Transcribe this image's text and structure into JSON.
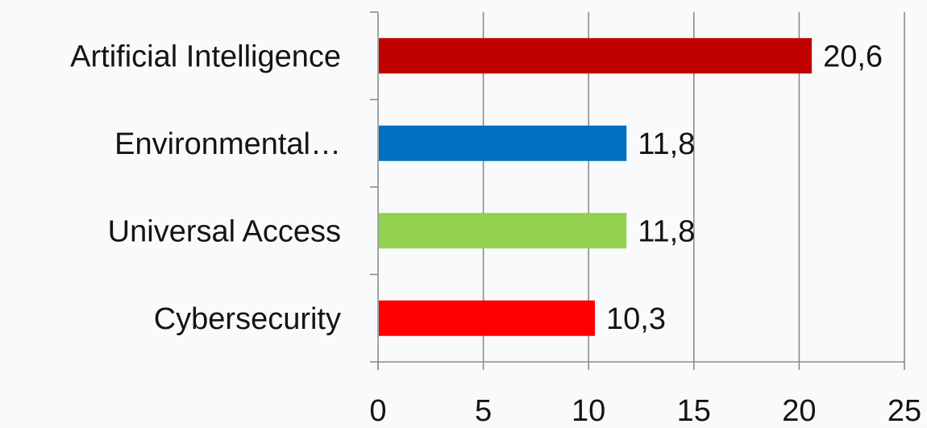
{
  "chart_data": {
    "type": "bar",
    "orientation": "horizontal",
    "categories": [
      "Artificial Intelligence",
      "Environmental…",
      "Universal Access",
      "Cybersecurity"
    ],
    "values": [
      20.6,
      11.8,
      11.8,
      10.3
    ],
    "value_labels": [
      "20,6",
      "11,8",
      "11,8",
      "10,3"
    ],
    "bar_colors": [
      "#c00000",
      "#0070c0",
      "#92d050",
      "#ff0000"
    ],
    "x_ticks": [
      0,
      5,
      10,
      15,
      20,
      25
    ],
    "x_tick_labels": [
      "0",
      "5",
      "10",
      "15",
      "20",
      "25"
    ],
    "xlim": [
      0,
      25
    ],
    "grid": "vertical",
    "legend": "none",
    "title": "",
    "xlabel": "",
    "ylabel": ""
  }
}
